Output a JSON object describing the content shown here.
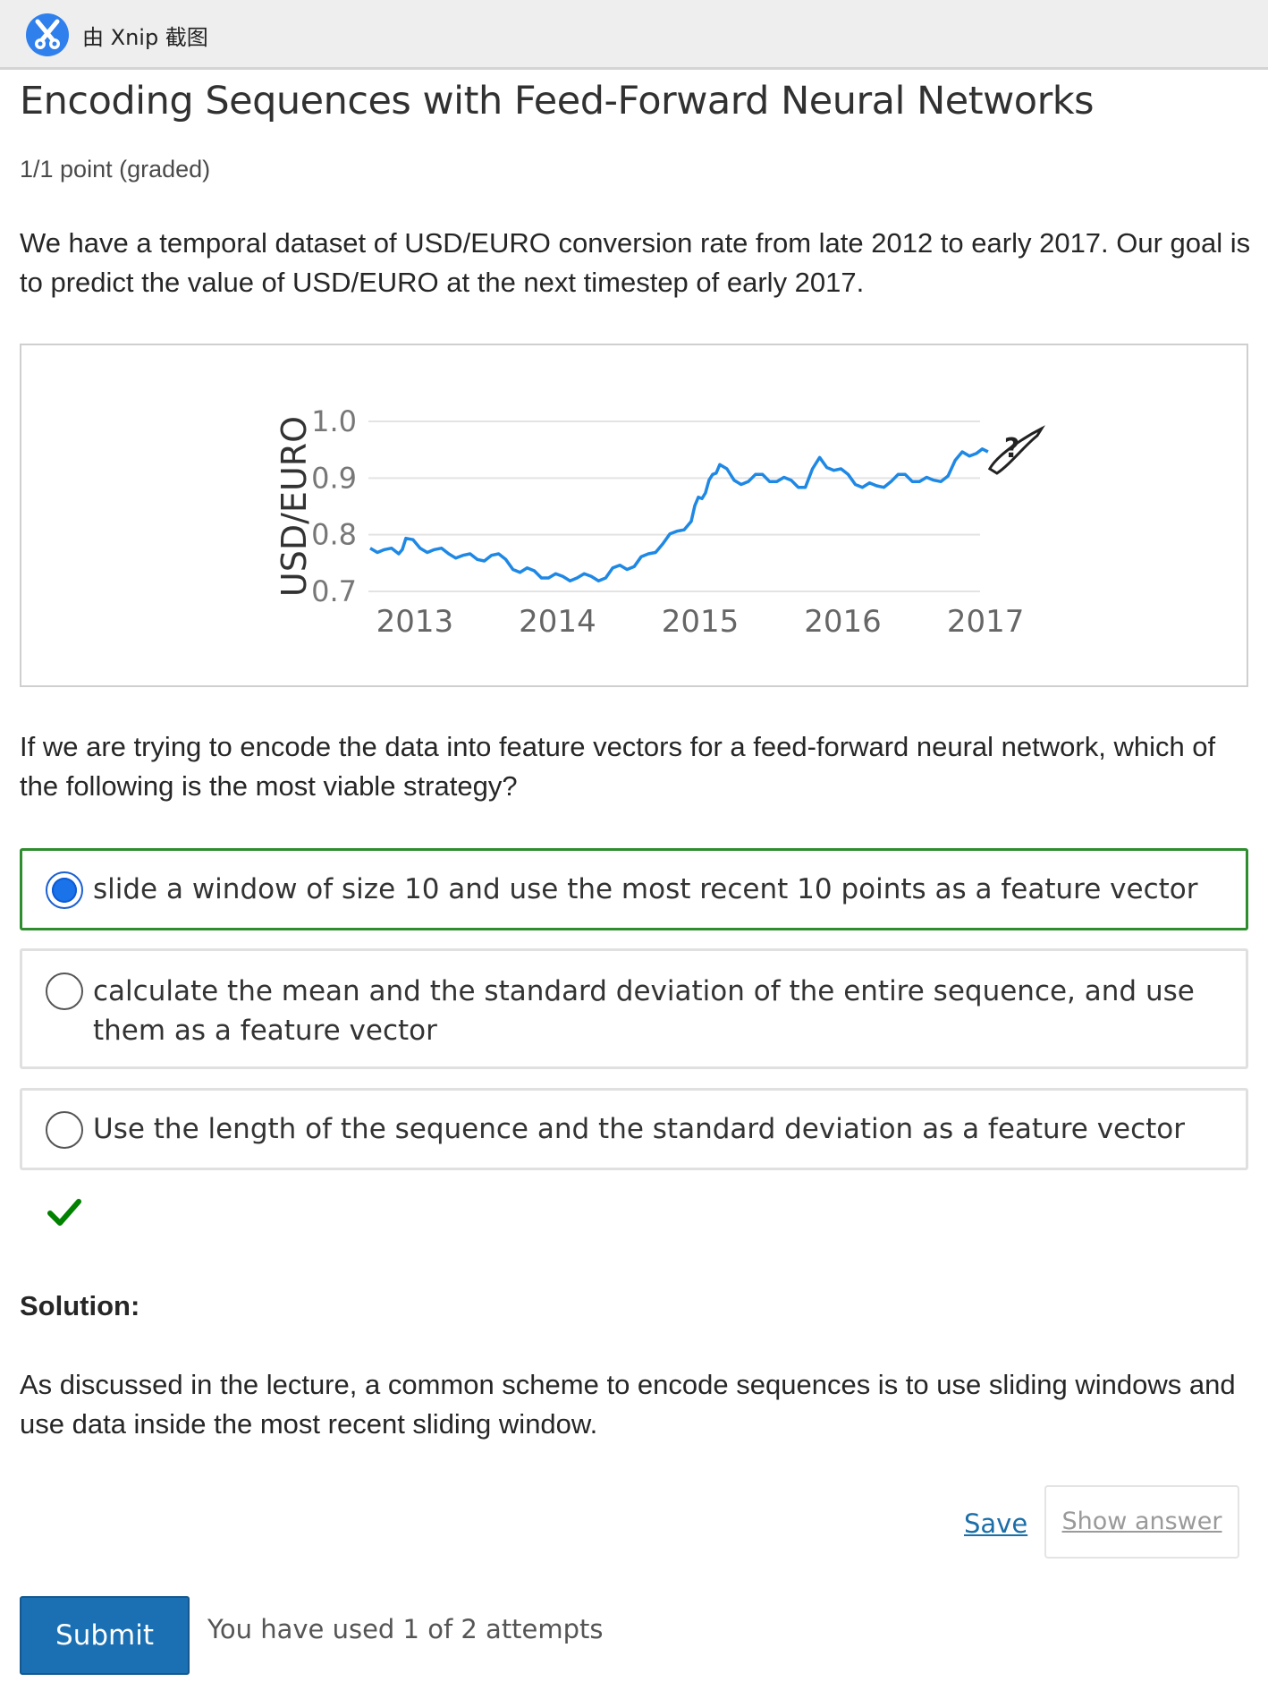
{
  "topbar": {
    "label": "由 Xnip 截图",
    "logo_icon": "xnip-scissors-icon",
    "logo_color": "#2f80ed"
  },
  "problem": {
    "title": "Encoding Sequences with Feed-Forward Neural Networks",
    "points": "1/1 point (graded)",
    "intro": "We have a temporal dataset of USD/EURO conversion rate from late 2012 to early 2017. Our goal is to predict the value of USD/EURO at the next timestep of early 2017.",
    "question": "If we are trying to encode the data into feature vectors for a feed-forward neural network, which of the following is the most viable strategy?",
    "choices": [
      {
        "label": "slide a window of size 10 and use the most recent 10 points as a feature vector",
        "selected": true
      },
      {
        "label": "calculate the mean and the standard deviation of the entire sequence, and use them as a feature vector",
        "selected": false
      },
      {
        "label": "Use the length of the sequence and the standard deviation as a feature vector",
        "selected": false
      }
    ],
    "result_icon": "checkmark-icon",
    "result_color": "#008100",
    "solution_heading": "Solution:",
    "solution_text": "As discussed in the lecture, a common scheme to encode sequences is to use sliding windows and use data inside the most recent sliding window.",
    "actions": {
      "save_label": "Save",
      "show_answer_label": "Show answer",
      "submit_label": "Submit",
      "attempts_text": "You have used 1 of 2 attempts"
    },
    "accent_color": "#1b6fb3",
    "selected_border_color": "#2e8d2e"
  },
  "chart_data": {
    "type": "line",
    "title": "",
    "xlabel": "",
    "ylabel": "USD/EURO",
    "x_ticks": [
      "2013",
      "2014",
      "2015",
      "2016",
      "2017"
    ],
    "y_ticks": [
      0.7,
      0.8,
      0.9,
      1.0
    ],
    "ylim": [
      0.7,
      1.0
    ],
    "xlim": [
      2012.75,
      2017.2
    ],
    "grid": true,
    "series": [
      {
        "color": "#1e88e5",
        "x": [
          2012.75,
          2012.85,
          2012.95,
          2013.0,
          2013.1,
          2013.2,
          2013.3,
          2013.4,
          2013.5,
          2013.6,
          2013.7,
          2013.8,
          2013.9,
          2014.0,
          2014.1,
          2014.2,
          2014.3,
          2014.4,
          2014.5,
          2014.6,
          2014.7,
          2014.8,
          2014.9,
          2015.0,
          2015.05,
          2015.1,
          2015.15,
          2015.2,
          2015.3,
          2015.4,
          2015.5,
          2015.6,
          2015.7,
          2015.8,
          2015.9,
          2016.0,
          2016.1,
          2016.2,
          2016.3,
          2016.4,
          2016.5,
          2016.6,
          2016.7,
          2016.8,
          2016.9,
          2017.0,
          2017.08
        ],
        "y": [
          0.77,
          0.78,
          0.76,
          0.8,
          0.77,
          0.78,
          0.76,
          0.77,
          0.75,
          0.77,
          0.75,
          0.74,
          0.73,
          0.73,
          0.72,
          0.73,
          0.72,
          0.73,
          0.74,
          0.75,
          0.76,
          0.79,
          0.8,
          0.83,
          0.86,
          0.88,
          0.9,
          0.93,
          0.89,
          0.9,
          0.9,
          0.9,
          0.89,
          0.89,
          0.93,
          0.92,
          0.9,
          0.89,
          0.88,
          0.9,
          0.9,
          0.9,
          0.89,
          0.91,
          0.94,
          0.95,
          0.94
        ]
      }
    ],
    "annotation_icon": "question-cursor-icon"
  }
}
